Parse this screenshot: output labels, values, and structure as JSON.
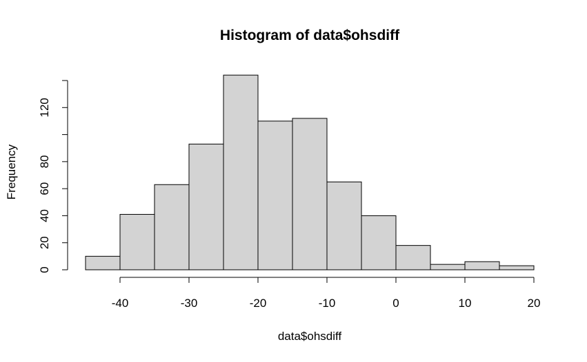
{
  "chart_data": {
    "type": "bar",
    "title": "Histogram of data$ohsdiff",
    "xlabel": "data$ohsdiff",
    "ylabel": "Frequency",
    "bin_edges": [
      -45,
      -40,
      -35,
      -30,
      -25,
      -20,
      -15,
      -10,
      -5,
      0,
      5,
      10,
      15,
      20
    ],
    "values": [
      10,
      41,
      63,
      93,
      144,
      110,
      112,
      65,
      40,
      18,
      4,
      6,
      3
    ],
    "xlim": [
      -45,
      20
    ],
    "ylim": [
      0,
      140
    ],
    "x_ticks": [
      -40,
      -30,
      -20,
      -10,
      0,
      10,
      20
    ],
    "y_ticks": [
      0,
      20,
      40,
      60,
      80,
      100,
      120,
      140
    ],
    "y_tick_labels": [
      "0",
      "20",
      "40",
      "60",
      "80",
      "",
      "120",
      ""
    ],
    "bar_color": "#d3d3d3",
    "grid": false
  }
}
